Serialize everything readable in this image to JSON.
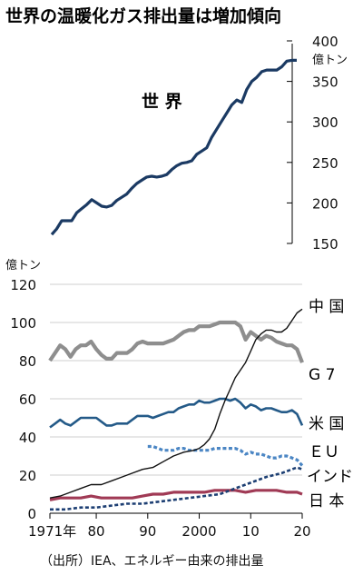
{
  "title": "世界の温暖化ガス排出量は増加傾向",
  "source": "（出所）IEA、エネルギー由来の排出量",
  "colors": {
    "world": "#1b3a63",
    "china": "#111111",
    "g7": "#8e8e8e",
    "us": "#245a88",
    "eu": "#4b86c4",
    "india": "#1d3f73",
    "japan": "#a03a55"
  },
  "chart_data": [
    {
      "type": "line",
      "label": "世 界",
      "ylabel": "億トン",
      "yticks": [
        "400",
        "350",
        "300",
        "250",
        "200",
        "150"
      ],
      "ylim": [
        150,
        400
      ],
      "xlim": [
        1971,
        2020
      ],
      "series": [
        {
          "name": "世 界",
          "x": [
            1971,
            1972,
            1973,
            1974,
            1975,
            1976,
            1977,
            1978,
            1979,
            1980,
            1981,
            1982,
            1983,
            1984,
            1985,
            1986,
            1987,
            1988,
            1989,
            1990,
            1991,
            1992,
            1993,
            1994,
            1995,
            1996,
            1997,
            1998,
            1999,
            2000,
            2001,
            2002,
            2003,
            2004,
            2005,
            2006,
            2007,
            2008,
            2009,
            2010,
            2011,
            2012,
            2013,
            2014,
            2015,
            2016,
            2017,
            2018,
            2019,
            2020
          ],
          "values": [
            161,
            168,
            178,
            178,
            178,
            188,
            193,
            198,
            204,
            200,
            196,
            195,
            197,
            203,
            207,
            211,
            218,
            224,
            228,
            232,
            233,
            232,
            233,
            235,
            241,
            246,
            249,
            250,
            252,
            260,
            264,
            268,
            281,
            291,
            301,
            311,
            321,
            327,
            324,
            340,
            350,
            355,
            362,
            364,
            364,
            364,
            368,
            375,
            376,
            376
          ]
        }
      ]
    },
    {
      "type": "line",
      "ylabel": "億トン",
      "yticks": [
        "120",
        "100",
        "80",
        "60",
        "40",
        "20",
        "0"
      ],
      "xticks": [
        "1971年",
        "80",
        "90",
        "2000",
        "10",
        "20"
      ],
      "ylim": [
        0,
        120
      ],
      "xlim": [
        1971,
        2020
      ],
      "series": [
        {
          "name": "中 国",
          "x": [
            1971,
            1973,
            1975,
            1977,
            1979,
            1981,
            1983,
            1985,
            1987,
            1989,
            1991,
            1993,
            1995,
            1997,
            1999,
            2000,
            2001,
            2002,
            2003,
            2004,
            2005,
            2006,
            2007,
            2008,
            2009,
            2010,
            2011,
            2012,
            2013,
            2014,
            2015,
            2016,
            2017,
            2018,
            2019,
            2020
          ],
          "values": [
            8,
            9,
            11,
            13,
            15,
            15,
            17,
            19,
            21,
            23,
            24,
            27,
            30,
            32,
            33,
            34,
            36,
            39,
            44,
            52,
            59,
            65,
            71,
            75,
            79,
            85,
            91,
            94,
            96,
            96,
            95,
            95,
            97,
            101,
            105,
            107
          ]
        },
        {
          "name": "G 7",
          "x": [
            1971,
            1972,
            1973,
            1974,
            1975,
            1976,
            1977,
            1978,
            1979,
            1980,
            1981,
            1982,
            1983,
            1984,
            1985,
            1986,
            1987,
            1988,
            1989,
            1990,
            1991,
            1992,
            1993,
            1994,
            1995,
            1996,
            1997,
            1998,
            1999,
            2000,
            2001,
            2002,
            2003,
            2004,
            2005,
            2006,
            2007,
            2008,
            2009,
            2010,
            2011,
            2012,
            2013,
            2014,
            2015,
            2016,
            2017,
            2018,
            2019,
            2020
          ],
          "values": [
            80,
            84,
            88,
            86,
            82,
            86,
            88,
            88,
            90,
            86,
            83,
            81,
            81,
            84,
            84,
            84,
            86,
            89,
            90,
            89,
            89,
            89,
            89,
            90,
            91,
            93,
            95,
            96,
            96,
            98,
            98,
            98,
            99,
            100,
            100,
            100,
            100,
            98,
            91,
            95,
            93,
            91,
            93,
            92,
            90,
            89,
            88,
            88,
            86,
            79
          ]
        },
        {
          "name": "米 国",
          "x": [
            1971,
            1972,
            1973,
            1974,
            1975,
            1976,
            1977,
            1978,
            1979,
            1980,
            1981,
            1982,
            1983,
            1984,
            1985,
            1986,
            1987,
            1988,
            1989,
            1990,
            1991,
            1992,
            1993,
            1994,
            1995,
            1996,
            1997,
            1998,
            1999,
            2000,
            2001,
            2002,
            2003,
            2004,
            2005,
            2006,
            2007,
            2008,
            2009,
            2010,
            2011,
            2012,
            2013,
            2014,
            2015,
            2016,
            2017,
            2018,
            2019,
            2020
          ],
          "values": [
            45,
            47,
            49,
            47,
            46,
            48,
            50,
            50,
            50,
            50,
            48,
            46,
            46,
            47,
            47,
            47,
            49,
            51,
            51,
            51,
            50,
            51,
            52,
            53,
            53,
            55,
            56,
            57,
            57,
            59,
            58,
            58,
            59,
            60,
            60,
            59,
            60,
            58,
            55,
            57,
            56,
            54,
            55,
            55,
            54,
            53,
            53,
            54,
            52,
            46
          ]
        },
        {
          "name": "ＥＵ",
          "x": [
            1990,
            1991,
            1992,
            1993,
            1994,
            1995,
            1996,
            1997,
            1998,
            1999,
            2000,
            2001,
            2002,
            2003,
            2004,
            2005,
            2006,
            2007,
            2008,
            2009,
            2010,
            2011,
            2012,
            2013,
            2014,
            2015,
            2016,
            2017,
            2018,
            2019,
            2020
          ],
          "values": [
            35,
            35,
            34,
            33,
            33,
            33,
            34,
            34,
            33,
            33,
            33,
            33,
            33,
            34,
            34,
            34,
            34,
            34,
            33,
            31,
            32,
            31,
            31,
            30,
            29,
            29,
            30,
            30,
            29,
            28,
            25
          ]
        },
        {
          "name": "インド",
          "x": [
            1971,
            1974,
            1977,
            1980,
            1983,
            1986,
            1989,
            1992,
            1995,
            1998,
            2001,
            2004,
            2007,
            2010,
            2013,
            2016,
            2019,
            2020
          ],
          "values": [
            2,
            2,
            3,
            3,
            4,
            5,
            5,
            6,
            7,
            8,
            9,
            10,
            13,
            16,
            19,
            21,
            24,
            23
          ]
        },
        {
          "name": "日 本",
          "x": [
            1971,
            1973,
            1975,
            1977,
            1979,
            1981,
            1983,
            1985,
            1987,
            1989,
            1991,
            1993,
            1995,
            1997,
            1999,
            2001,
            2003,
            2005,
            2007,
            2009,
            2011,
            2013,
            2015,
            2017,
            2019,
            2020
          ],
          "values": [
            7,
            8,
            8,
            8,
            9,
            8,
            8,
            8,
            8,
            9,
            10,
            10,
            11,
            11,
            11,
            11,
            12,
            12,
            12,
            11,
            12,
            12,
            12,
            11,
            11,
            10
          ]
        }
      ]
    }
  ]
}
